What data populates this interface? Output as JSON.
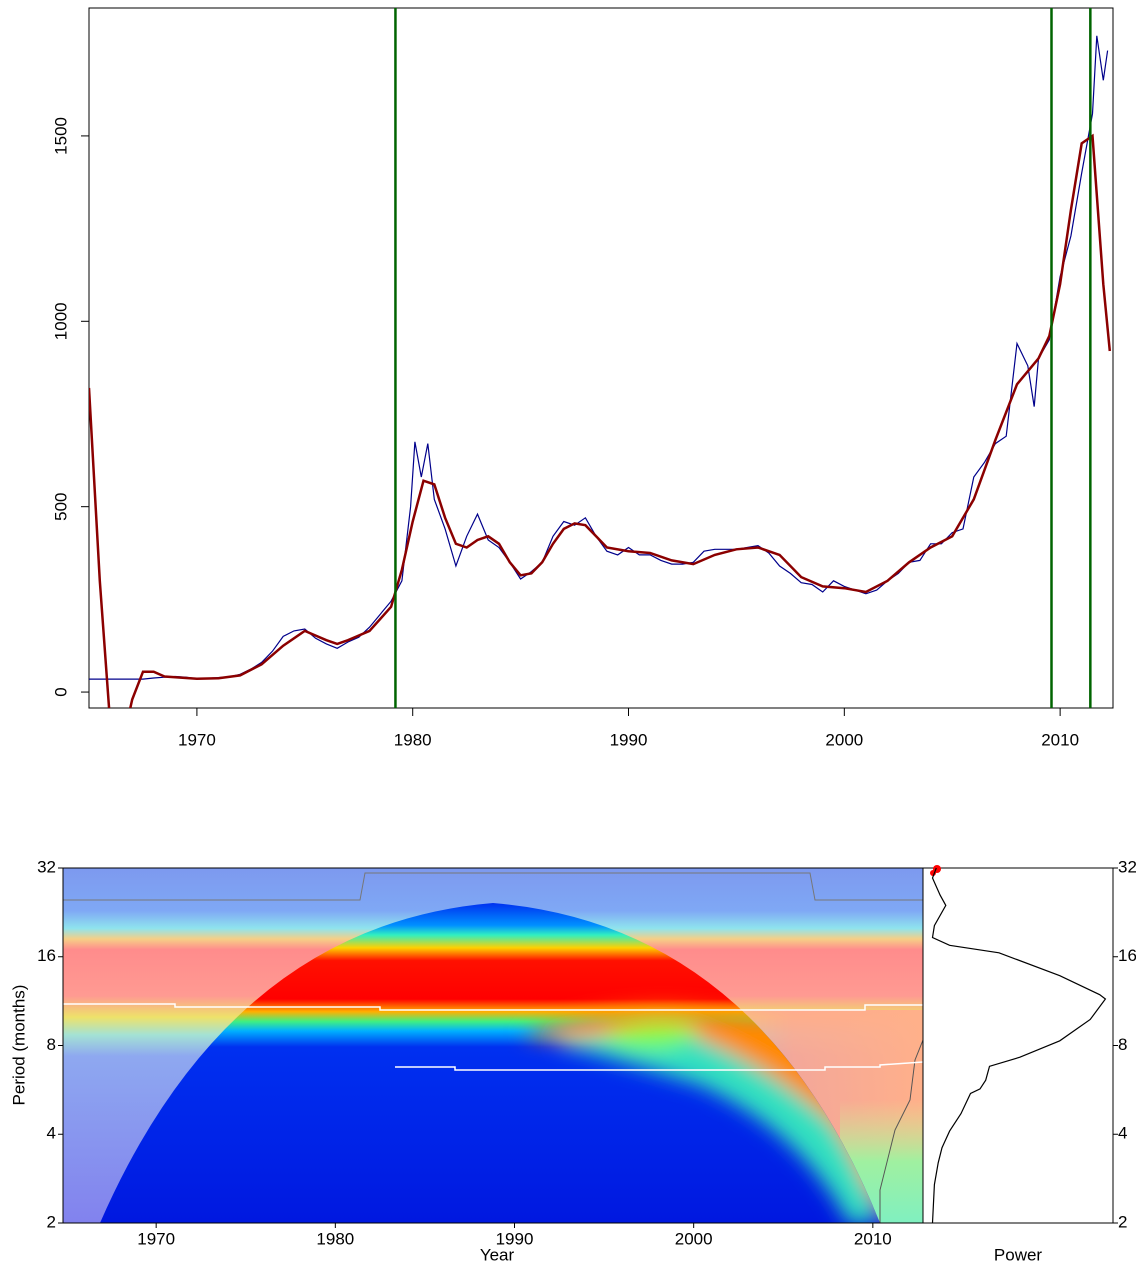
{
  "chart_data": [
    {
      "type": "line",
      "xlim": [
        1965,
        2012.45
      ],
      "ylim": [
        -43,
        1845
      ],
      "xticks": [
        1970,
        1980,
        1990,
        2000,
        2010
      ],
      "yticks": [
        0,
        500,
        1000,
        1500
      ],
      "vlines": {
        "values": [
          1979.2,
          2009.6,
          2011.4
        ],
        "color": "#006400"
      },
      "series": [
        {
          "color": "#00008b",
          "x": [
            1965,
            1967.5,
            1968,
            1968.5,
            1969,
            1969.5,
            1970,
            1970.5,
            1971,
            1971.5,
            1972,
            1972.5,
            1973,
            1973.5,
            1974,
            1974.5,
            1975,
            1975.5,
            1976,
            1976.5,
            1977,
            1977.5,
            1978,
            1978.5,
            1979,
            1979.5,
            1979.9,
            1980.1,
            1980.4,
            1980.7,
            1981,
            1981.5,
            1982,
            1982.5,
            1983,
            1983.5,
            1984,
            1984.5,
            1985,
            1985.5,
            1986,
            1986.5,
            1987,
            1987.5,
            1988,
            1988.5,
            1989,
            1989.5,
            1990,
            1990.5,
            1991,
            1991.5,
            1992,
            1992.5,
            1993,
            1993.5,
            1994,
            1994.5,
            1995,
            1995.5,
            1996,
            1996.5,
            1997,
            1997.5,
            1998,
            1998.5,
            1999,
            1999.5,
            2000,
            2000.5,
            2001,
            2001.5,
            2002,
            2002.5,
            2003,
            2003.5,
            2004,
            2004.5,
            2005,
            2005.5,
            2006,
            2006.5,
            2007,
            2007.5,
            2008,
            2008.5,
            2008.8,
            2009,
            2009.5,
            2010,
            2010.5,
            2011,
            2011.5,
            2011.7,
            2012,
            2012.2
          ],
          "values": [
            35,
            35,
            38,
            40,
            42,
            40,
            36,
            37,
            39,
            41,
            48,
            62,
            80,
            110,
            150,
            165,
            170,
            145,
            130,
            118,
            135,
            148,
            175,
            210,
            245,
            300,
            500,
            675,
            580,
            670,
            520,
            440,
            340,
            420,
            480,
            410,
            390,
            350,
            305,
            325,
            350,
            420,
            460,
            450,
            470,
            420,
            380,
            370,
            390,
            370,
            370,
            355,
            345,
            345,
            350,
            380,
            385,
            385,
            385,
            390,
            395,
            375,
            340,
            320,
            295,
            290,
            270,
            300,
            285,
            275,
            265,
            275,
            300,
            320,
            350,
            355,
            400,
            400,
            430,
            440,
            580,
            620,
            670,
            690,
            940,
            880,
            770,
            900,
            950,
            1120,
            1230,
            1400,
            1560,
            1770,
            1650,
            1730
          ]
        },
        {
          "color": "#8b0000",
          "x": [
            1965,
            1965.5,
            1966,
            1966.5,
            1967,
            1967.5,
            1968,
            1968.5,
            1969,
            1969.5,
            1970,
            1971,
            1972,
            1973,
            1974,
            1975,
            1976,
            1976.5,
            1977,
            1978,
            1979,
            1979.5,
            1980,
            1980.5,
            1981,
            1981.5,
            1982,
            1982.5,
            1983,
            1983.5,
            1984,
            1984.5,
            1985,
            1985.5,
            1986,
            1986.5,
            1987,
            1987.5,
            1988,
            1988.5,
            1989,
            1990,
            1991,
            1992,
            1993,
            1994,
            1995,
            1996,
            1997,
            1998,
            1999,
            2000,
            2001,
            2002,
            2003,
            2004,
            2005,
            2006,
            2007,
            2008,
            2009,
            2009.5,
            2010,
            2010.5,
            2011,
            2011.5,
            2012,
            2012.3
          ],
          "values": [
            820,
            300,
            -100,
            -150,
            -20,
            55,
            55,
            42,
            40,
            38,
            36,
            37,
            45,
            75,
            125,
            165,
            140,
            130,
            140,
            165,
            230,
            330,
            460,
            570,
            560,
            470,
            400,
            390,
            410,
            420,
            400,
            350,
            315,
            320,
            350,
            400,
            440,
            455,
            450,
            420,
            390,
            380,
            375,
            355,
            345,
            370,
            385,
            390,
            370,
            310,
            285,
            280,
            270,
            300,
            350,
            390,
            420,
            520,
            680,
            830,
            900,
            960,
            1100,
            1300,
            1480,
            1500,
            1100,
            920
          ]
        }
      ]
    },
    {
      "type": "wavelet",
      "xlabel": "Year",
      "ylabel": "Period (months)",
      "power_label": "Power",
      "xlim": [
        1964.8,
        2012.8
      ],
      "xticks": [
        1970,
        1980,
        1990,
        2000,
        2010
      ],
      "ylim": [
        2,
        32
      ],
      "yticks": [
        2,
        4,
        8,
        16,
        32
      ],
      "log_y": true,
      "power": {
        "color": "#000000",
        "xlim": [
          0,
          1
        ],
        "periods": [
          32,
          29.6,
          25.9,
          23.9,
          20.4,
          18.6,
          17.5,
          16.5,
          13.8,
          11.9,
          11.5,
          9.8,
          8.3,
          7.3,
          6.8,
          6.1,
          5.7,
          5.5,
          4.7,
          4.1,
          3.6,
          3.2,
          2.7,
          2.0
        ],
        "values": [
          0.07,
          0.05,
          0.09,
          0.12,
          0.06,
          0.05,
          0.14,
          0.4,
          0.72,
          0.93,
          0.96,
          0.88,
          0.72,
          0.51,
          0.35,
          0.33,
          0.3,
          0.25,
          0.2,
          0.14,
          0.1,
          0.08,
          0.06,
          0.05
        ]
      }
    }
  ]
}
